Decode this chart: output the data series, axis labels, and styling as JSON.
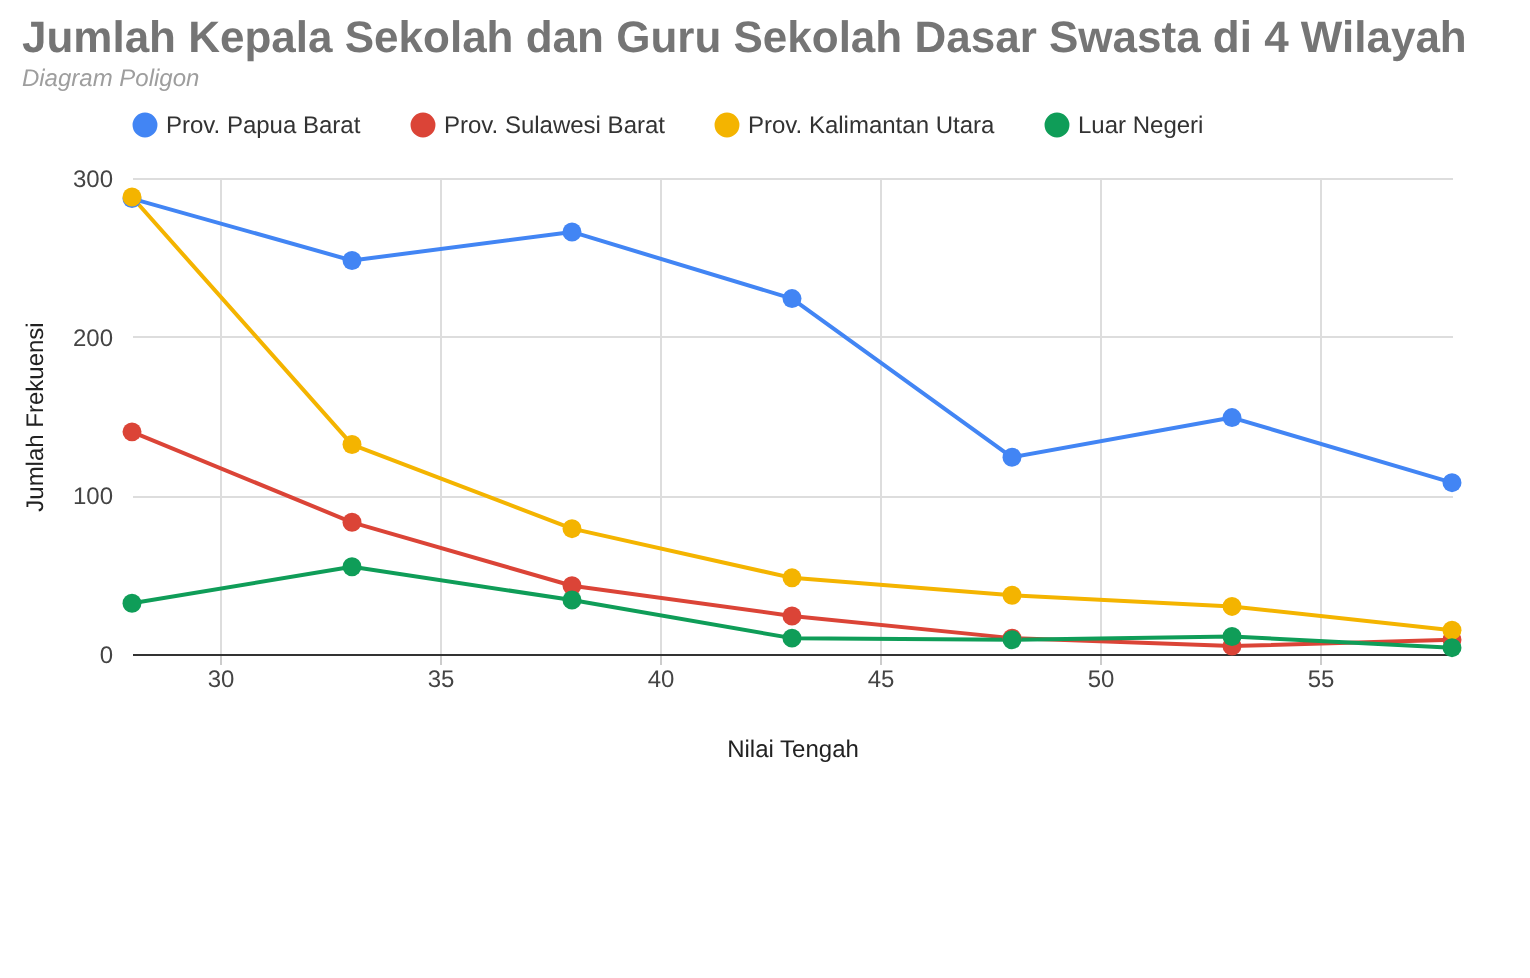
{
  "chart_data": {
    "type": "line",
    "title": "Jumlah Kepala Sekolah dan Guru Sekolah Dasar Swasta di 4 Wilayah",
    "subtitle": "Diagram Poligon",
    "xlabel": "Nilai Tengah",
    "ylabel": "Jumlah Frekuensi",
    "x": [
      28,
      33,
      38,
      43,
      48,
      53,
      58
    ],
    "series": [
      {
        "name": "Prov. Papua Barat",
        "color": "#4285f4",
        "values": [
          287,
          248,
          266,
          224,
          124,
          149,
          108
        ]
      },
      {
        "name": "Prov. Sulawesi Barat",
        "color": "#db4437",
        "values": [
          140,
          83,
          43,
          24,
          10,
          5,
          9
        ]
      },
      {
        "name": "Prov. Kalimantan Utara",
        "color": "#f4b400",
        "values": [
          288,
          132,
          79,
          48,
          37,
          30,
          15
        ]
      },
      {
        "name": "Luar Negeri",
        "color": "#0f9d58",
        "values": [
          32,
          55,
          34,
          10,
          9,
          11,
          4
        ]
      }
    ],
    "xlim": [
      28,
      58
    ],
    "xticks": [
      30,
      35,
      40,
      45,
      50,
      55
    ],
    "ylim": [
      0,
      300
    ],
    "yticks": [
      0,
      100,
      200,
      300
    ],
    "grid": true,
    "legend": "top",
    "marker": "circle",
    "line_style": "solid"
  }
}
